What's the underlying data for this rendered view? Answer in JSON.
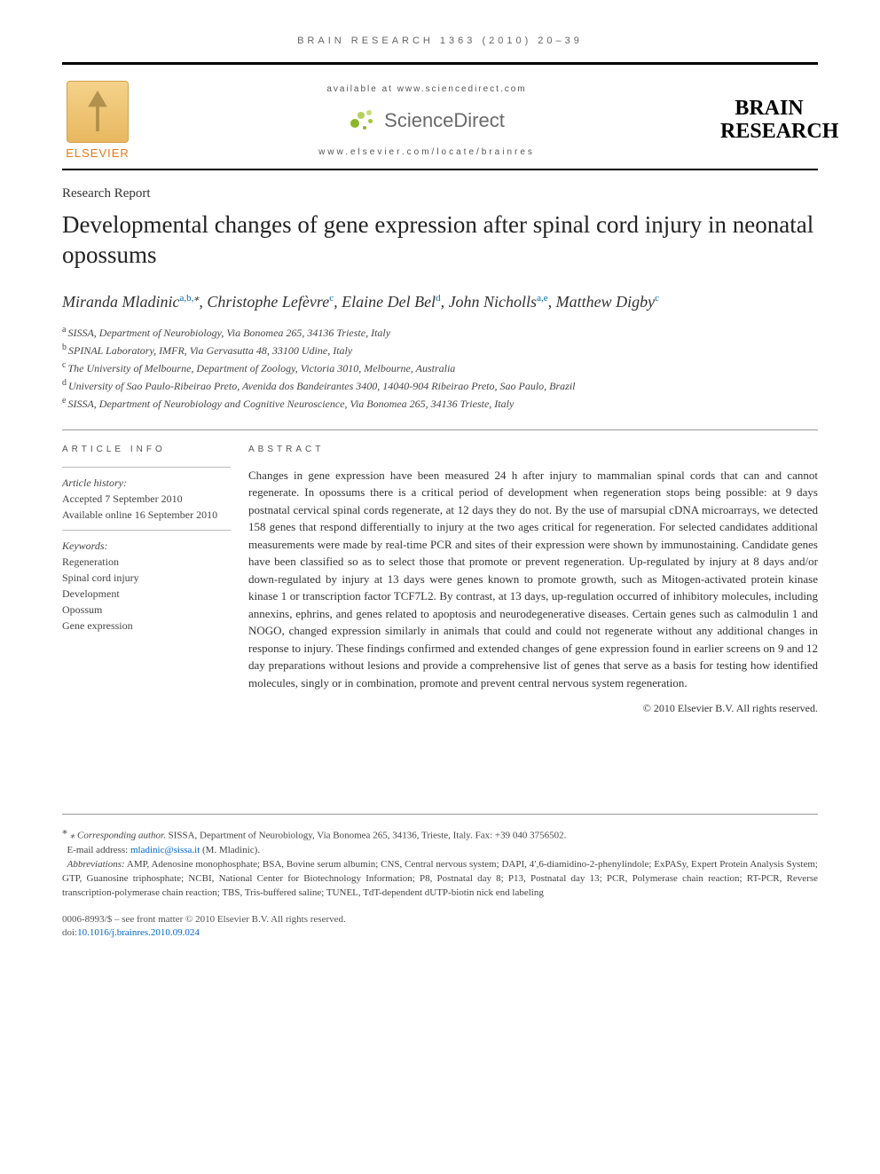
{
  "header": {
    "citation": "BRAIN RESEARCH 1363 (2010) 20–39",
    "available_at": "available at www.sciencedirect.com",
    "sciencedirect": "ScienceDirect",
    "locate": "www.elsevier.com/locate/brainres",
    "publisher": "ELSEVIER",
    "journal_line1": "BRAIN",
    "journal_line2": "RESEARCH"
  },
  "article": {
    "section_label": "Research Report",
    "title": "Developmental changes of gene expression after spinal cord injury in neonatal opossums",
    "authors_html": "Miranda Mladinic<sup>a,b,</sup><span class='corr-star'>⁎</span>, Christophe Lefèvre<sup>c</sup>, Elaine Del Bel<sup>d</sup>, John Nicholls<sup>a,e</sup>, Matthew Digby<sup>c</sup>",
    "affiliations": [
      {
        "key": "a",
        "text": "SISSA, Department of Neurobiology, Via Bonomea 265, 34136 Trieste, Italy"
      },
      {
        "key": "b",
        "text": "SPINAL Laboratory, IMFR, Via Gervasutta 48, 33100 Udine, Italy"
      },
      {
        "key": "c",
        "text": "The University of Melbourne, Department of Zoology, Victoria 3010, Melbourne, Australia"
      },
      {
        "key": "d",
        "text": "University of Sao Paulo-Ribeirao Preto, Avenida dos Bandeirantes 3400, 14040-904 Ribeirao Preto, Sao Paulo, Brazil"
      },
      {
        "key": "e",
        "text": "SISSA, Department of Neurobiology and Cognitive Neuroscience, Via Bonomea 265, 34136 Trieste, Italy"
      }
    ]
  },
  "info": {
    "heading": "ARTICLE INFO",
    "history_label": "Article history:",
    "accepted": "Accepted 7 September 2010",
    "available_online": "Available online 16 September 2010",
    "keywords_label": "Keywords:",
    "keywords": [
      "Regeneration",
      "Spinal cord injury",
      "Development",
      "Opossum",
      "Gene expression"
    ]
  },
  "abstract": {
    "heading": "ABSTRACT",
    "body": "Changes in gene expression have been measured 24 h after injury to mammalian spinal cords that can and cannot regenerate. In opossums there is a critical period of development when regeneration stops being possible: at 9 days postnatal cervical spinal cords regenerate, at 12 days they do not. By the use of marsupial cDNA microarrays, we detected 158 genes that respond differentially to injury at the two ages critical for regeneration. For selected candidates additional measurements were made by real-time PCR and sites of their expression were shown by immunostaining. Candidate genes have been classified so as to select those that promote or prevent regeneration. Up-regulated by injury at 8 days and/or down-regulated by injury at 13 days were genes known to promote growth, such as Mitogen-activated protein kinase kinase 1 or transcription factor TCF7L2. By contrast, at 13 days, up-regulation occurred of inhibitory molecules, including annexins, ephrins, and genes related to apoptosis and neurodegenerative diseases. Certain genes such as calmodulin 1 and NOGO, changed expression similarly in animals that could and could not regenerate without any additional changes in response to injury. These findings confirmed and extended changes of gene expression found in earlier screens on 9 and 12 day preparations without lesions and provide a comprehensive list of genes that serve as a basis for testing how identified molecules, singly or in combination, promote and prevent central nervous system regeneration.",
    "copyright": "© 2010 Elsevier B.V. All rights reserved."
  },
  "footnotes": {
    "corresponding_label": "⁎ Corresponding author.",
    "corresponding_text": "SISSA, Department of Neurobiology, Via Bonomea 265, 34136, Trieste, Italy. Fax: +39 040 3756502.",
    "email_label": "E-mail address:",
    "email": "mladinic@sissa.it",
    "email_person": "(M. Mladinic).",
    "abbrev_label": "Abbreviations:",
    "abbrev_text": "AMP, Adenosine monophosphate; BSA, Bovine serum albumin; CNS, Central nervous system; DAPI, 4′,6-diamidino-2-phenylindole; ExPASy, Expert Protein Analysis System; GTP, Guanosine triphosphate; NCBI, National Center for Biotechnology Information; P8, Postnatal day 8; P13, Postnatal day 13; PCR, Polymerase chain reaction; RT-PCR, Reverse transcription-polymerase chain reaction; TBS, Tris-buffered saline; TUNEL, TdT-dependent dUTP-biotin nick end labeling"
  },
  "footer": {
    "issn_line": "0006-8993/$ – see front matter © 2010 Elsevier B.V. All rights reserved.",
    "doi_label": "doi:",
    "doi": "10.1016/j.brainres.2010.09.024"
  },
  "colors": {
    "link": "#0066cc",
    "elsevier_orange": "#e67817",
    "sd_green": "#a7c83c",
    "rule": "#000000",
    "text": "#333333"
  }
}
